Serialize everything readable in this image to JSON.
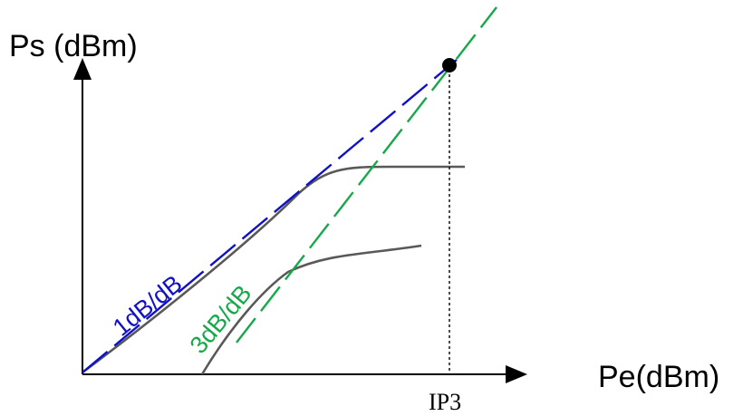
{
  "diagram": {
    "y_axis_label": "Ps (dBm)",
    "x_axis_label": "Pe(dBm)",
    "intercept_label": "IP3",
    "fundamental_slope_label": "1dB/dB",
    "third_order_slope_label": "3dB/dB"
  },
  "colors": {
    "axis": "#000000",
    "fundamental_asymptote": "#1010c8",
    "third_order_asymptote": "#17a84a",
    "response_curves": "#595959",
    "intercept_point": "#000000"
  }
}
